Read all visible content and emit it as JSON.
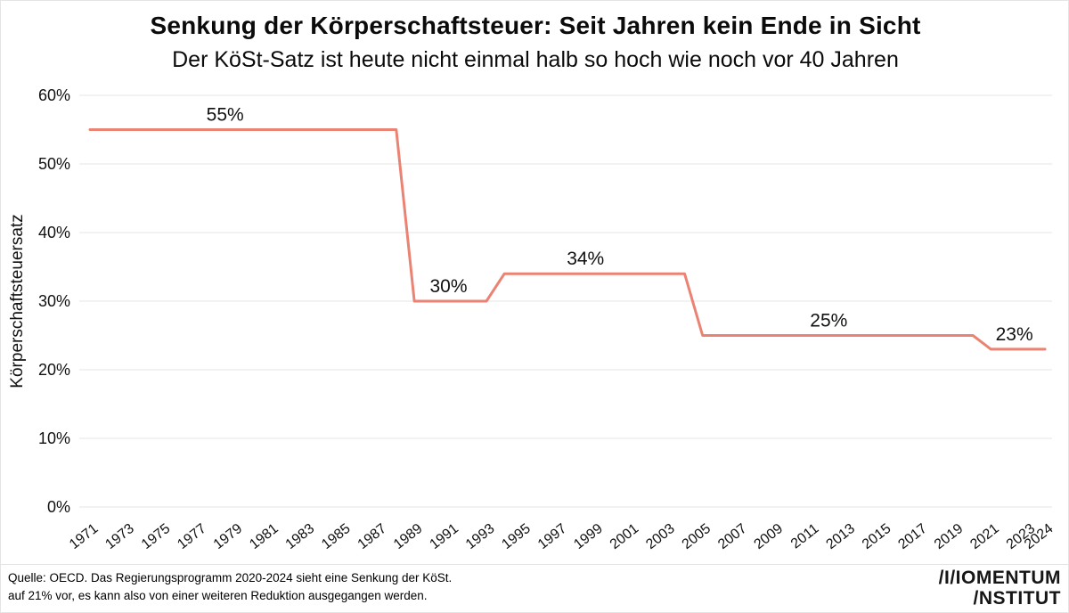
{
  "header": {
    "title": "Senkung der Körperschaftsteuer: Seit Jahren kein Ende in Sicht",
    "subtitle": "Der KöSt-Satz ist heute nicht einmal halb so hoch wie noch vor 40 Jahren"
  },
  "chart_data": {
    "type": "line",
    "title": "Senkung der Körperschaftsteuer: Seit Jahren kein Ende in Sicht",
    "subtitle": "Der KöSt-Satz ist heute nicht einmal halb so hoch wie noch vor 40 Jahren",
    "ylabel": "Körperschaftsteuersatz",
    "ylim": [
      0,
      60
    ],
    "yticks": [
      0,
      10,
      20,
      30,
      40,
      50,
      60
    ],
    "ytick_suffix": "%",
    "grid": true,
    "legend": false,
    "x_start": 1971,
    "x_end": 2024,
    "xtick_labels": [
      "1971",
      "1973",
      "1975",
      "1977",
      "1979",
      "1981",
      "1983",
      "1985",
      "1987",
      "1989",
      "1991",
      "1993",
      "1995",
      "1997",
      "1999",
      "2001",
      "2003",
      "2005",
      "2007",
      "2009",
      "2011",
      "2013",
      "2015",
      "2017",
      "2019",
      "2021",
      "2023",
      "2024"
    ],
    "values": [
      55,
      55,
      55,
      55,
      55,
      55,
      55,
      55,
      55,
      55,
      55,
      55,
      55,
      55,
      55,
      55,
      55,
      55,
      30,
      30,
      30,
      30,
      30,
      34,
      34,
      34,
      34,
      34,
      34,
      34,
      34,
      34,
      34,
      34,
      25,
      25,
      25,
      25,
      25,
      25,
      25,
      25,
      25,
      25,
      25,
      25,
      25,
      25,
      25,
      25,
      23,
      23,
      23,
      23
    ],
    "segments": [
      {
        "from": 1971,
        "to": 1988,
        "value": 55
      },
      {
        "from": 1989,
        "to": 1993,
        "value": 30
      },
      {
        "from": 1994,
        "to": 2004,
        "value": 34
      },
      {
        "from": 2005,
        "to": 2020,
        "value": 25
      },
      {
        "from": 2021,
        "to": 2024,
        "value": 23
      }
    ],
    "data_labels": [
      {
        "text": "55%",
        "year": 1978.5,
        "value": 55
      },
      {
        "text": "30%",
        "year": 1990.9,
        "value": 30
      },
      {
        "text": "34%",
        "year": 1998.5,
        "value": 34
      },
      {
        "text": "25%",
        "year": 2012.0,
        "value": 25
      },
      {
        "text": "23%",
        "year": 2022.3,
        "value": 23
      }
    ],
    "line_color": "#EA8373",
    "grid_color": "#E9E9E7",
    "text_color": "#111111"
  },
  "footer": {
    "source_line1": "Quelle: OECD. Das Regierungsprogramm 2020-2024 sieht eine Senkung der KöSt.",
    "source_line2": "auf 21% vor, es kann also von einer weiteren Reduktion ausgegangen werden.",
    "logo_line1": "/I/IOMENTUM",
    "logo_line2": "/NSTITUT"
  }
}
